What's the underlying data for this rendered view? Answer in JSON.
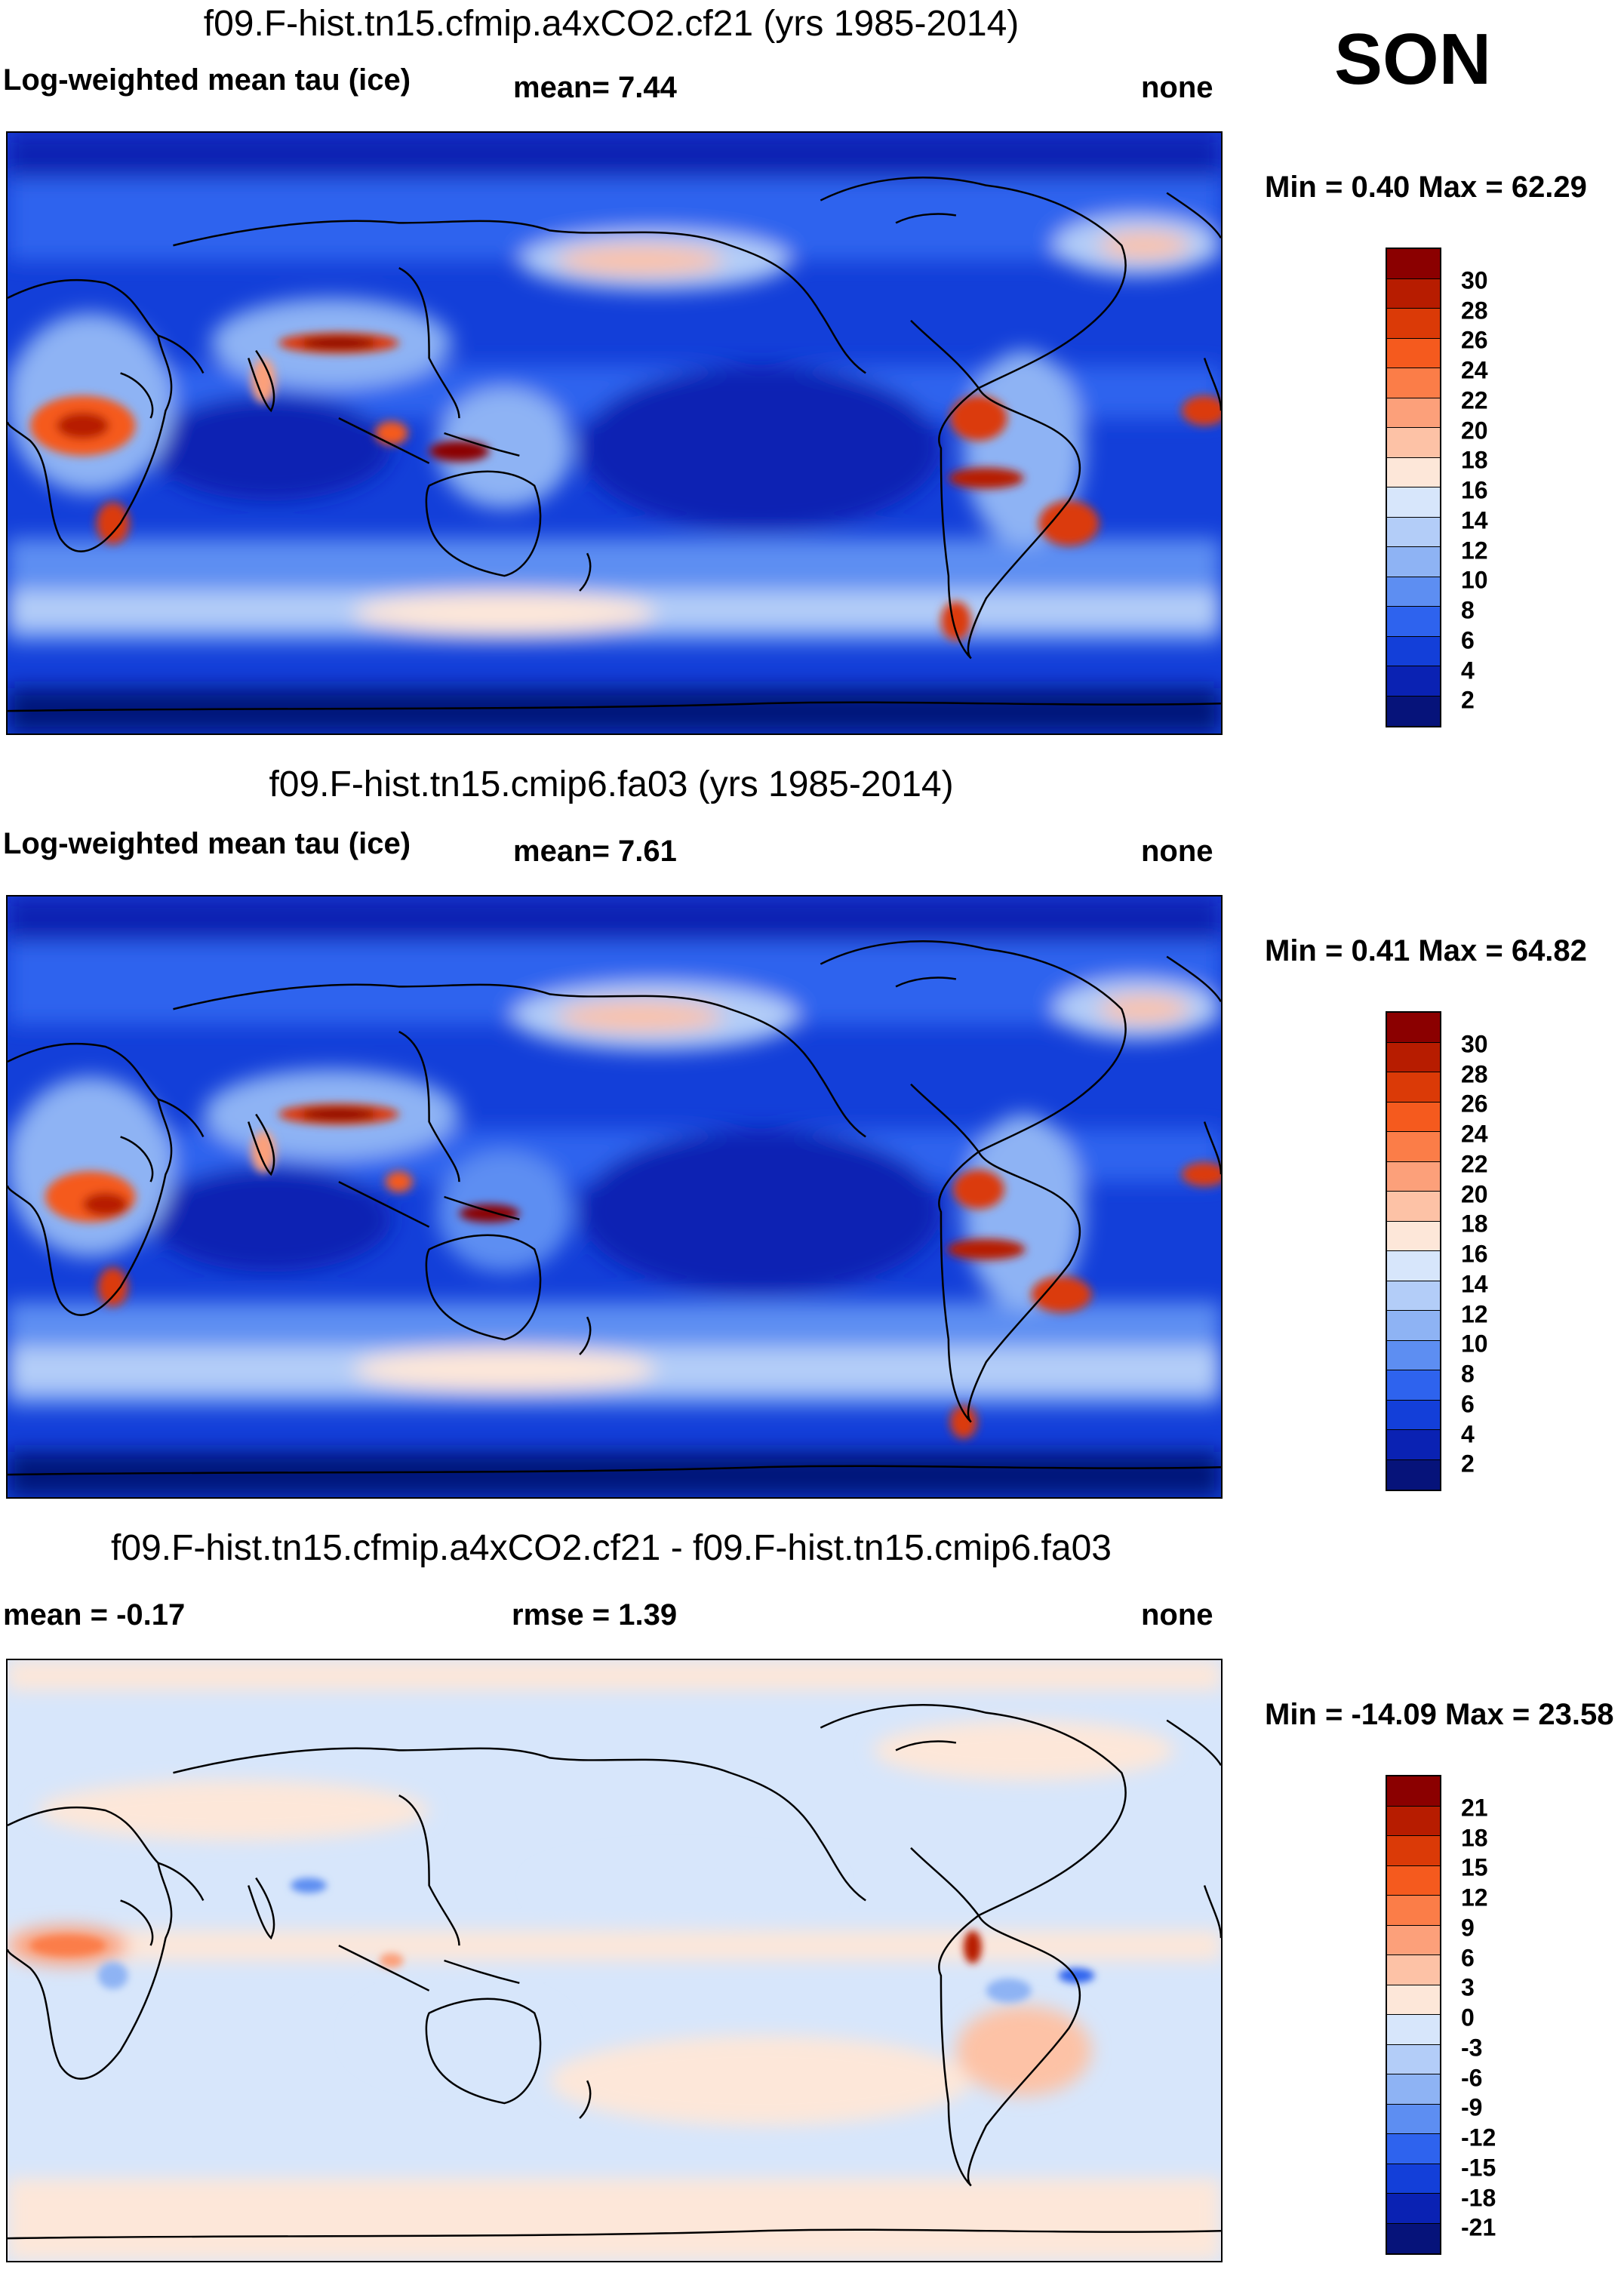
{
  "season": "SON",
  "panels": [
    {
      "title": "f09.F-hist.tn15.cfmip.a4xCO2.cf21 (yrs 1985-2014)",
      "variable": "Log-weighted mean tau (ice)",
      "stat1": "mean=   7.44",
      "units": "none",
      "minmax": "Min =   0.40 Max =  62.29",
      "colorbar": {
        "labels": [
          "30",
          "28",
          "26",
          "24",
          "22",
          "20",
          "18",
          "16",
          "14",
          "12",
          "10",
          "8",
          "6",
          "4",
          "2"
        ],
        "colors": [
          "#8b0000",
          "#b71c00",
          "#db3a07",
          "#f55a1e",
          "#fb7d48",
          "#fca07a",
          "#fdc2a6",
          "#fde7d9",
          "#d7e6fb",
          "#b3cdf8",
          "#8eb3f4",
          "#5d8ef2",
          "#2e63ee",
          "#133fd9",
          "#0a22b3",
          "#06137a"
        ]
      }
    },
    {
      "title": "f09.F-hist.tn15.cmip6.fa03 (yrs 1985-2014)",
      "variable": "Log-weighted mean tau (ice)",
      "stat1": "mean=   7.61",
      "units": "none",
      "minmax": "Min =   0.41 Max =  64.82",
      "colorbar": {
        "labels": [
          "30",
          "28",
          "26",
          "24",
          "22",
          "20",
          "18",
          "16",
          "14",
          "12",
          "10",
          "8",
          "6",
          "4",
          "2"
        ],
        "colors": [
          "#8b0000",
          "#b71c00",
          "#db3a07",
          "#f55a1e",
          "#fb7d48",
          "#fca07a",
          "#fdc2a6",
          "#fde7d9",
          "#d7e6fb",
          "#b3cdf8",
          "#8eb3f4",
          "#5d8ef2",
          "#2e63ee",
          "#133fd9",
          "#0a22b3",
          "#06137a"
        ]
      }
    },
    {
      "title": "f09.F-hist.tn15.cfmip.a4xCO2.cf21 - f09.F-hist.tn15.cmip6.fa03",
      "stat1": "mean =  -0.17",
      "stat2": "rmse =    1.39",
      "units": "none",
      "minmax": "Min = -14.09 Max =  23.58",
      "colorbar": {
        "labels": [
          "21",
          "18",
          "15",
          "12",
          "9",
          "6",
          "3",
          "0",
          "-3",
          "-6",
          "-9",
          "-12",
          "-15",
          "-18",
          "-21"
        ],
        "colors": [
          "#8b0000",
          "#b71c00",
          "#db3a07",
          "#f55a1e",
          "#fb7d48",
          "#fca07a",
          "#fdc2a6",
          "#fde7d9",
          "#d7e6fb",
          "#b3cdf8",
          "#8eb3f4",
          "#5d8ef2",
          "#2e63ee",
          "#133fd9",
          "#0a22b3",
          "#06137a"
        ]
      }
    }
  ]
}
